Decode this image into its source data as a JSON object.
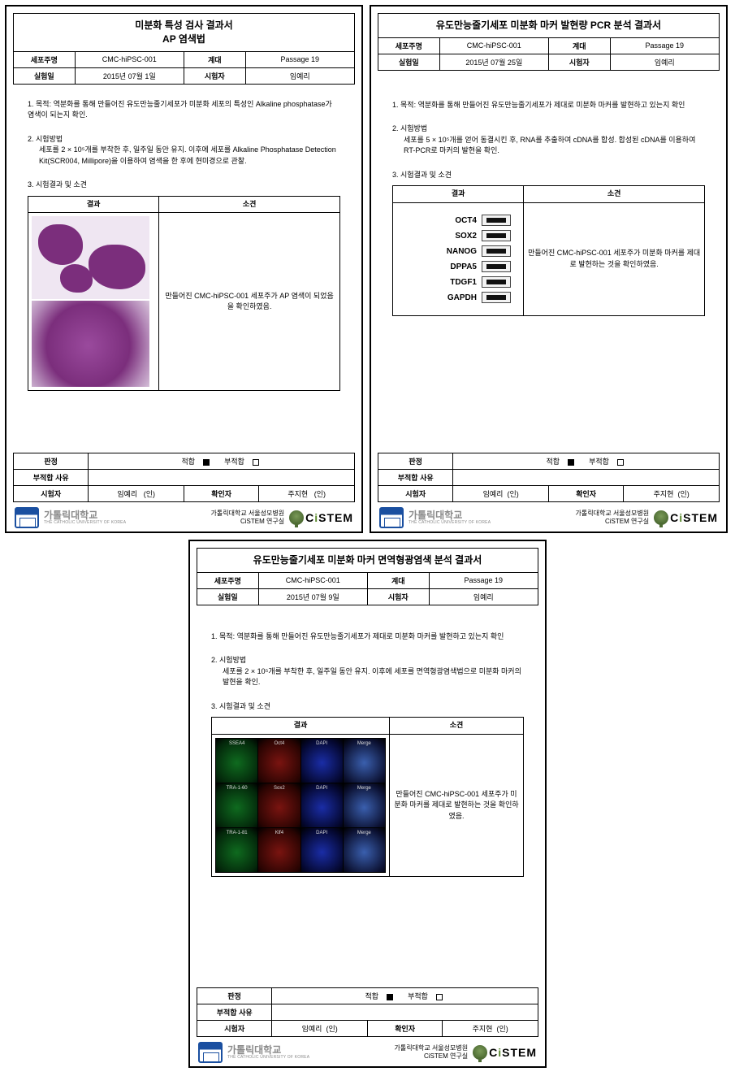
{
  "uni": {
    "name": "가톨릭대학교",
    "sub": "THE CATHOLIC UNIVERSITY OF KOREA"
  },
  "footer": {
    "line1": "가톨릭대학교 서울성모병원",
    "line2": "CiSTEM 연구실",
    "brand_pre": "C",
    "brand_i": "i",
    "brand_post": "STEM"
  },
  "common": {
    "meta_labels": {
      "cellline": "세포주명",
      "passage": "계대",
      "date": "실험일",
      "tester": "시험자"
    },
    "cellline": "CMC-hiPSC-001",
    "passage": "Passage 19",
    "tester": "임예리",
    "result_hdr": "결과",
    "opinion_hdr": "소견",
    "verdict_label": "판정",
    "pass": "적합",
    "fail": "부적합",
    "reason_label": "부적합 사유",
    "signer_label": "시험자",
    "confirm_label": "확인자",
    "seal": "(인)",
    "confirm_name": "주지현"
  },
  "doc1": {
    "title_l1": "미분화 특성 검사 결과서",
    "title_l2": "AP 염색법",
    "date": "2015년 07월 1일",
    "s1": "1.  목적: 역분화를 통해 만들어진 유도만능줄기세포가 미분화 세포의 특성인 Alkaline phosphatase가 염색이 되는지 확인.",
    "s2_h": "2.  시험방법",
    "s2_b": "세포를 2 × 10⁵개를 부착한 후, 일주일 동안 유지. 이후에 세포를 Alkaline Phosphatase Detection Kit(SCR004, Millipore)을 이용하여 염색을 한 후에 현미경으로 관찰.",
    "s3": "3.  시험결과 및 소견",
    "opinion": "만들어진 CMC-hiPSC-001 세포주가 AP 염색이 되었음을 확인하였음."
  },
  "doc2": {
    "title": "유도만능줄기세포 미분화 마커 발현량 PCR 분석 결과서",
    "date": "2015년 07월 25일",
    "s1": "1.  목적: 역분화를 통해 만들어진 유도만능줄기세포가 제대로 미분화 마커를 발현하고 있는지 확인",
    "s2_h": "2.  시험방법",
    "s2_b": "세포를 5 × 10⁵개를 얻어 동결시킨 후, RNA를 추출하여 cDNA를 합성. 합성된 cDNA를 이용하여 RT-PCR로 마커의 발현을 확인.",
    "s3": "3.  시험결과 및 소견",
    "markers": [
      "OCT4",
      "SOX2",
      "NANOG",
      "DPPA5",
      "TDGF1",
      "GAPDH"
    ],
    "opinion": "만들어진 CMC-hiPSC-001 세포주가 미분화 마커를 제대로 발현하는 것을 확인하였음."
  },
  "doc3": {
    "title": "유도만능줄기세포 미분화 마커 면역형광염색 분석 결과서",
    "date": "2015년 07월 9일",
    "s1": "1.  목적: 역분화를 통해 만들어진 유도만능줄기세포가 제대로 미분화 마커를 발현하고 있는지 확인",
    "s2_h": "2.  시험방법",
    "s2_b": "세포를 2 × 10⁵개를 부착한 후, 일주일 동안 유지. 이후에 세포를 면역형광염색법으로 미분화 마커의 발현을 확인.",
    "s3": "3.  시험결과 및 소견",
    "grid": [
      [
        "SSEA4",
        "Oct4",
        "DAPI",
        "Merge"
      ],
      [
        "TRA-1-60",
        "Sox2",
        "DAPI",
        "Merge"
      ],
      [
        "TRA-1-81",
        "Klf4",
        "DAPI",
        "Merge"
      ]
    ],
    "grid_colors": [
      [
        "if-g",
        "if-r",
        "if-b",
        "if-m"
      ],
      [
        "if-g",
        "if-r",
        "if-b",
        "if-m"
      ],
      [
        "if-g",
        "if-r",
        "if-b",
        "if-m"
      ]
    ],
    "opinion": "만들어진 CMC-hiPSC-001 세포주가 미분화 마커를 제대로 발현하는 것을 확인하였음."
  }
}
